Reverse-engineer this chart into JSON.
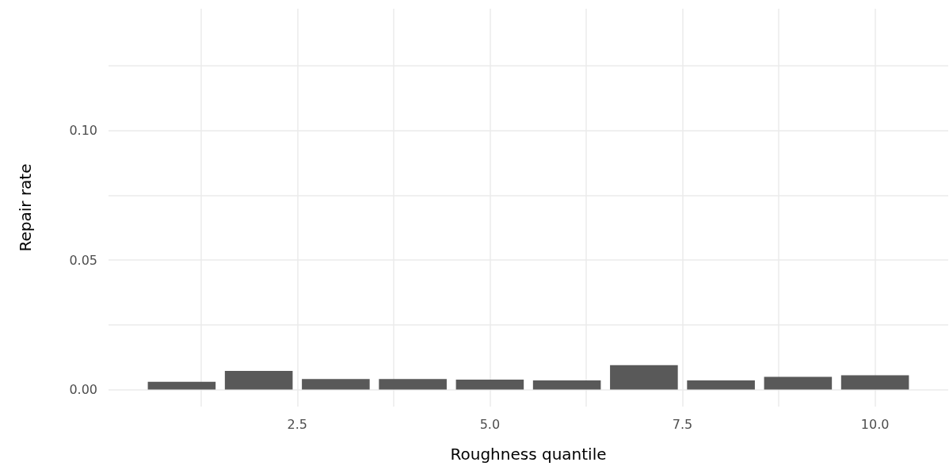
{
  "chart_data": {
    "type": "bar",
    "xlabel": "Roughness quantile",
    "ylabel": "Repair rate",
    "x": [
      1,
      2,
      3,
      4,
      5,
      6,
      7,
      8,
      9,
      10
    ],
    "values": [
      0.003,
      0.0072,
      0.004,
      0.004,
      0.0038,
      0.0035,
      0.0094,
      0.0035,
      0.0049,
      0.0055
    ],
    "color": "#595959",
    "xlim": [
      0.05,
      10.95
    ],
    "xticks": [
      {
        "value": 1.25,
        "label": null
      },
      {
        "value": 2.5,
        "label": "2.5"
      },
      {
        "value": 3.75,
        "label": null
      },
      {
        "value": 5,
        "label": "5.0"
      },
      {
        "value": 6.25,
        "label": null
      },
      {
        "value": 7.5,
        "label": "7.5"
      },
      {
        "value": 8.75,
        "label": null
      },
      {
        "value": 10,
        "label": "10.0"
      }
    ],
    "ylim": [
      -0.0066,
      0.147
    ],
    "yticks": [
      {
        "value": 0,
        "label": "0.00"
      },
      {
        "value": 0.025,
        "label": null
      },
      {
        "value": 0.05,
        "label": "0.05"
      },
      {
        "value": 0.075,
        "label": null
      },
      {
        "value": 0.1,
        "label": "0.10"
      },
      {
        "value": 0.125,
        "label": null
      }
    ],
    "grid": true
  }
}
